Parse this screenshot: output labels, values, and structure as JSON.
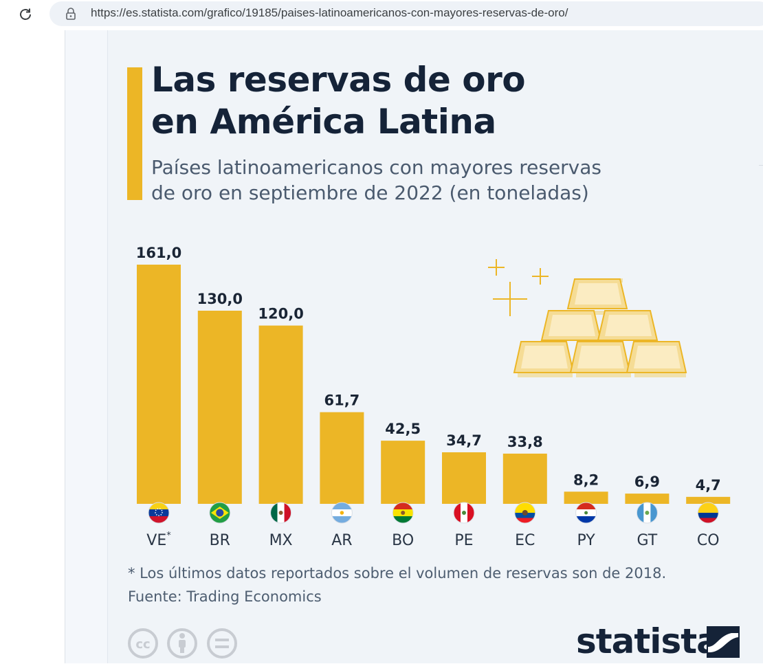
{
  "browser": {
    "url": "https://es.statista.com/grafico/19185/paises-latinoamericanos-con-mayores-reservas-de-oro/"
  },
  "colors": {
    "accent": "#ecb626",
    "title": "#152338",
    "text": "#4a5a6e",
    "background": "#f0f4f8"
  },
  "header": {
    "title_lines": [
      "Las reservas de oro",
      "en América Latina"
    ],
    "subtitle_lines": [
      "Países latinoamericanos con mayores reservas",
      "de oro en septiembre de 2022 (en toneladas)"
    ]
  },
  "chart_data": {
    "type": "bar",
    "title": "Las reservas de oro en América Latina",
    "subtitle": "Países latinoamericanos con mayores reservas de oro en septiembre de 2022 (en toneladas)",
    "xlabel": "",
    "ylabel": "",
    "grid": false,
    "categories": [
      "VE",
      "BR",
      "MX",
      "AR",
      "BO",
      "PE",
      "EC",
      "PY",
      "GT",
      "CO"
    ],
    "category_marks": [
      "*",
      "",
      "",
      "",
      "",
      "",
      "",
      "",
      "",
      ""
    ],
    "values": [
      161.0,
      130.0,
      120.0,
      61.7,
      42.5,
      34.7,
      33.8,
      8.2,
      6.9,
      4.7
    ],
    "value_labels": [
      "161,0",
      "130,0",
      "120,0",
      "61,7",
      "42,5",
      "34,7",
      "33,8",
      "8,2",
      "6,9",
      "4,7"
    ],
    "ylim": [
      0,
      161
    ],
    "bar_color": "#ecb626",
    "flags": [
      "venezuela-flag-icon",
      "brazil-flag-icon",
      "mexico-flag-icon",
      "argentina-flag-icon",
      "bolivia-flag-icon",
      "peru-flag-icon",
      "ecuador-flag-icon",
      "paraguay-flag-icon",
      "guatemala-flag-icon",
      "colombia-flag-icon"
    ]
  },
  "footer": {
    "note": "* Los últimos datos reportados sobre el volumen de reservas son de 2018.",
    "source": "Fuente: Trading Economics",
    "logo": "statista",
    "license_icons": [
      "cc-icon",
      "attribution-icon",
      "no-derivatives-icon"
    ]
  }
}
